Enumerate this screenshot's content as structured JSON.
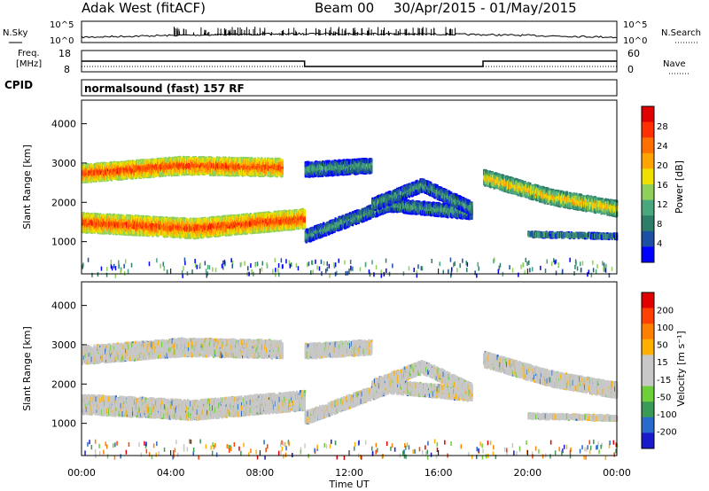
{
  "header": {
    "station": "Adak West (fitACF)",
    "beam": "Beam 00",
    "date_range": "30/Apr/2015 - 01/May/2015"
  },
  "strips": {
    "nsky_label": "N.Sky",
    "nsearch_label": "N.Search",
    "noise_ticks": [
      "10^5",
      "10^0"
    ],
    "freq_label_1": "Freq.",
    "freq_label_2": "[MHz]",
    "freq_ticks": [
      "18",
      "8"
    ],
    "nave_label": "Nave",
    "nave_ticks": [
      "60",
      "0"
    ],
    "cpid_label": "CPID",
    "cpid_text": "normalsound (fast) 157 RF"
  },
  "colors": {
    "power_scale": [
      "#0000ff",
      "#1d4fa3",
      "#2e7d6a",
      "#4aa67c",
      "#8fcf5a",
      "#f0e000",
      "#ffa400",
      "#ff7000",
      "#ff3000",
      "#e00000"
    ],
    "velocity_scale": [
      "#1a1acc",
      "#2a6acc",
      "#3a9a58",
      "#6fcf3a",
      "#c8c8c8",
      "#c8c8c8",
      "#ffb000",
      "#ff8000",
      "#ff4000",
      "#e00000"
    ]
  },
  "chart_data": [
    {
      "type": "heatmap",
      "panel": "power",
      "ylabel": "Slant Range [km]",
      "ylim": [
        180,
        4600
      ],
      "yticks": [
        "4000",
        "3000",
        "2000",
        "1000"
      ],
      "xlim_hours": [
        0,
        24
      ],
      "colorbar_label": "Power [dB]",
      "colorbar_ticks": [
        "28",
        "24",
        "20",
        "16",
        "12",
        "8",
        "4"
      ],
      "bands": [
        {
          "t": [
            0,
            10
          ],
          "center_km": [
            1550,
            1400,
            1650
          ],
          "width_km": 420,
          "level": "high"
        },
        {
          "t": [
            0,
            9
          ],
          "center_km": [
            2800,
            3000,
            2950
          ],
          "width_km": 380,
          "level": "high"
        },
        {
          "t": [
            10,
            17.5
          ],
          "center_km": [
            1200,
            2000,
            1800
          ],
          "width_km": 260,
          "level": "low"
        },
        {
          "t": [
            10,
            13
          ],
          "center_km": [
            2900,
            3000
          ],
          "width_km": 300,
          "level": "low"
        },
        {
          "t": [
            13,
            17.5
          ],
          "center_km": [
            2000,
            2500,
            1900
          ],
          "width_km": 260,
          "level": "low"
        },
        {
          "t": [
            18,
            24
          ],
          "center_km": [
            2700,
            2200,
            1900
          ],
          "width_km": 320,
          "level": "mid"
        },
        {
          "t": [
            20,
            24
          ],
          "center_km": [
            1250,
            1200
          ],
          "width_km": 70,
          "level": "low"
        }
      ]
    },
    {
      "type": "heatmap",
      "panel": "velocity",
      "ylabel": "Slant Range [km]",
      "ylim": [
        180,
        4600
      ],
      "yticks": [
        "4000",
        "3000",
        "2000",
        "1000"
      ],
      "xlabel": "Time UT",
      "xticks": [
        "00:00",
        "04:00",
        "08:00",
        "12:00",
        "16:00",
        "20:00",
        "00:00"
      ],
      "colorbar_label": "Velocity [m s⁻¹]",
      "colorbar_ticks": [
        "200",
        "100",
        "50",
        "15",
        "-15",
        "-50",
        "-100",
        "-200"
      ]
    },
    {
      "type": "line",
      "panel": "frequency",
      "x_hours": [
        0,
        10,
        10,
        18,
        18,
        24
      ],
      "freq_mhz": [
        13,
        13,
        10.5,
        10.5,
        13,
        13
      ]
    }
  ]
}
